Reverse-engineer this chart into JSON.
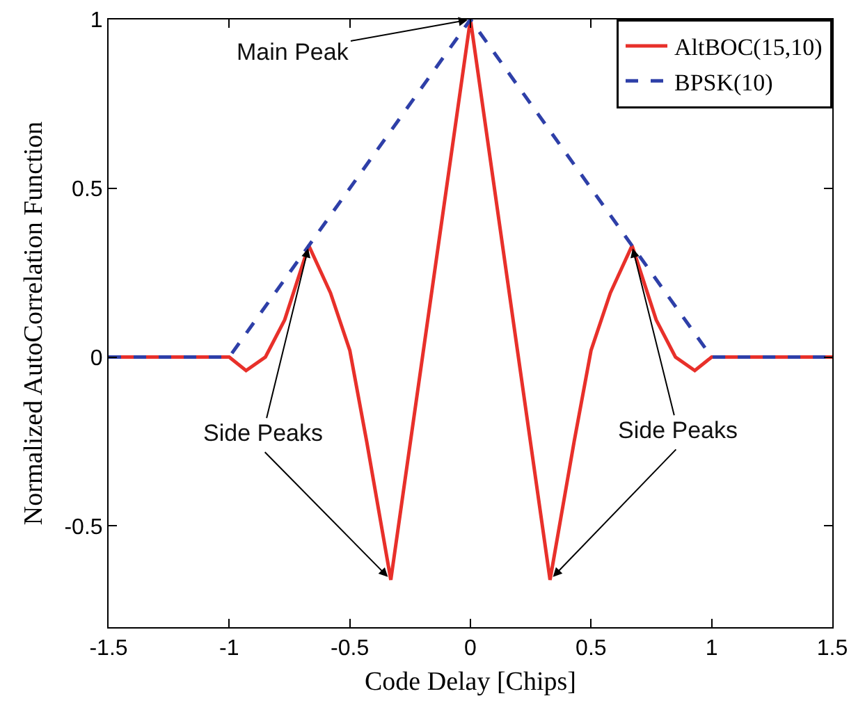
{
  "chart_data": {
    "type": "line",
    "xlabel": "Code Delay [Chips]",
    "ylabel": "Normalized AutoCorrelation Function",
    "xlim": [
      -1.5,
      1.5
    ],
    "xticks": [
      -1.5,
      -1,
      -0.5,
      0,
      0.5,
      1,
      1.5
    ],
    "ylim": [
      -0.8,
      1
    ],
    "yticks": [
      -0.5,
      0,
      0.5,
      1
    ],
    "grid": false,
    "legend": "top right",
    "marker": "none",
    "series": [
      {
        "name": "AltBOC(15,10)",
        "color": "#e8302a",
        "line_style": "solid",
        "x": [
          -1.5,
          -1,
          -0.93,
          -0.85,
          -0.77,
          -0.67,
          -0.58,
          -0.5,
          -0.43,
          -0.33,
          0,
          0.33,
          0.43,
          0.5,
          0.58,
          0.67,
          0.77,
          0.85,
          0.93,
          1,
          1.5
        ],
        "values": [
          0,
          0,
          -0.04,
          0,
          0.11,
          0.33,
          0.19,
          0.02,
          -0.25,
          -0.66,
          1,
          -0.66,
          -0.25,
          0.02,
          0.19,
          0.33,
          0.11,
          0,
          -0.04,
          0,
          0
        ]
      },
      {
        "name": "BPSK(10)",
        "color": "#2e3fa8",
        "line_style": "dashed",
        "x": [
          -1.5,
          -1,
          0,
          1,
          1.5
        ],
        "values": [
          0,
          0,
          1,
          0,
          0
        ]
      }
    ],
    "annotations": [
      {
        "text": "Main Peak",
        "x": 0,
        "y": 1
      },
      {
        "text": "Side Peaks",
        "x": -0.67,
        "y": 0.33
      },
      {
        "text": "Side Peaks",
        "x": 0.67,
        "y": 0.33
      }
    ]
  }
}
